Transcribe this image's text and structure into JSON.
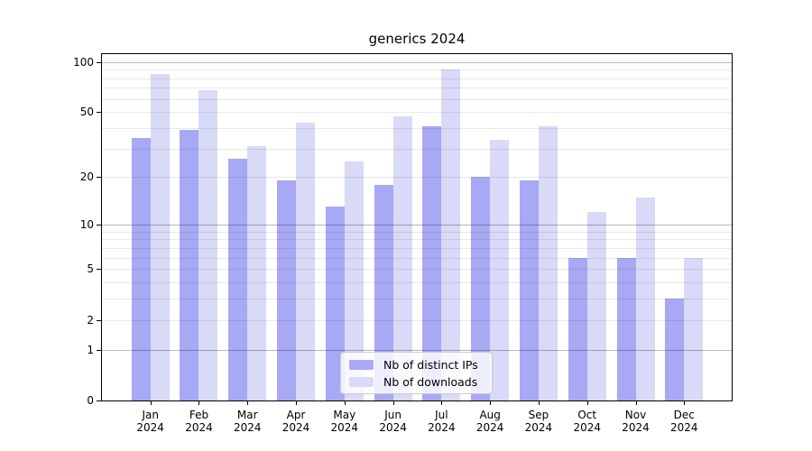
{
  "chart": {
    "title": "generics 2024"
  },
  "chart_data": {
    "type": "bar",
    "title": "generics 2024",
    "categories": [
      "Jan",
      "Feb",
      "Mar",
      "Apr",
      "May",
      "Jun",
      "Jul",
      "Aug",
      "Sep",
      "Oct",
      "Nov",
      "Dec"
    ],
    "x_year": "2024",
    "series": [
      {
        "name": "Nb of distinct IPs",
        "color": "#a8a8f4",
        "values": [
          35,
          39,
          26,
          19,
          13,
          18,
          41,
          20,
          19,
          6,
          6,
          3
        ]
      },
      {
        "name": "Nb of downloads",
        "color": "#d9d9f8",
        "values": [
          85,
          68,
          31,
          43,
          25,
          47,
          90,
          34,
          41,
          12,
          15,
          6
        ]
      }
    ],
    "y_scale": "log1p",
    "ylim": [
      0,
      110
    ],
    "y_ticks": [
      0,
      1,
      2,
      5,
      10,
      20,
      50,
      100
    ],
    "grid": {
      "major_lines": [
        1,
        10,
        100
      ],
      "minor_lines": [
        2,
        3,
        4,
        5,
        6,
        7,
        8,
        9,
        20,
        30,
        40,
        50,
        60,
        70,
        80,
        90
      ]
    },
    "legend_position": "lower center"
  },
  "colors": {
    "bar_distinct_ips": "#a8a8f4",
    "bar_downloads": "#d9d9f8",
    "grid_major": "rgba(0,0,0,0.28)",
    "grid_minor": "rgba(0,0,0,0.085)",
    "axis_line": "#000000",
    "legend_background": "rgba(255,255,255,0.8)",
    "legend_border": "#cccccc",
    "text": "#000000"
  }
}
